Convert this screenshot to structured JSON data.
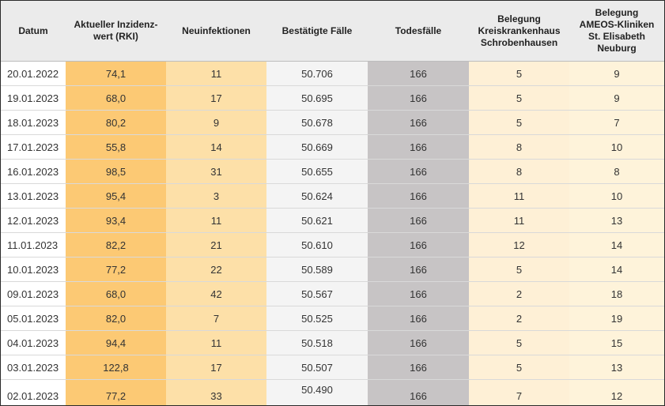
{
  "table": {
    "headers": [
      "Datum",
      "Aktueller Inzidenz-\nwert (RKI)",
      "Neuinfektionen",
      "Bestätigte Fälle",
      "Todesfälle",
      "Belegung\nKreiskrankenhaus\nSchrobenhausen",
      "Belegung\nAMEOS-Kliniken\nSt. Elisabeth\nNeuburg"
    ],
    "rows": [
      [
        "20.01.2022",
        "74,1",
        "11",
        "50.706",
        "166",
        "5",
        "9"
      ],
      [
        "19.01.2023",
        "68,0",
        "17",
        "50.695",
        "166",
        "5",
        "9"
      ],
      [
        "18.01.2023",
        "80,2",
        "9",
        "50.678",
        "166",
        "5",
        "7"
      ],
      [
        "17.01.2023",
        "55,8",
        "14",
        "50.669",
        "166",
        "8",
        "10"
      ],
      [
        "16.01.2023",
        "98,5",
        "31",
        "50.655",
        "166",
        "8",
        "8"
      ],
      [
        "13.01.2023",
        "95,4",
        "3",
        "50.624",
        "166",
        "11",
        "10"
      ],
      [
        "12.01.2023",
        "93,4",
        "11",
        "50.621",
        "166",
        "11",
        "13"
      ],
      [
        "11.01.2023",
        "82,2",
        "21",
        "50.610",
        "166",
        "12",
        "14"
      ],
      [
        "10.01.2023",
        "77,2",
        "22",
        "50.589",
        "166",
        "5",
        "14"
      ],
      [
        "09.01.2023",
        "68,0",
        "42",
        "50.567",
        "166",
        "2",
        "18"
      ],
      [
        "05.01.2023",
        "82,0",
        "7",
        "50.525",
        "166",
        "2",
        "19"
      ],
      [
        "04.01.2023",
        "94,4",
        "11",
        "50.518",
        "166",
        "5",
        "15"
      ],
      [
        "03.01.2023",
        "122,8",
        "17",
        "50.507",
        "166",
        "5",
        "13"
      ],
      [
        "02.01.2023",
        "77,2",
        "33",
        "50.490",
        "166",
        "7",
        "12"
      ]
    ],
    "column_colors": {
      "inzidenz": "#fcc974",
      "neuinfektionen": "#fde0a8",
      "bestaetigte_faelle": "#f4f4f4",
      "todesfaelle": "#c7c4c5",
      "belegung_kreiskrankenhaus": "#fef0d6",
      "belegung_ameos": "#fef3da"
    }
  }
}
